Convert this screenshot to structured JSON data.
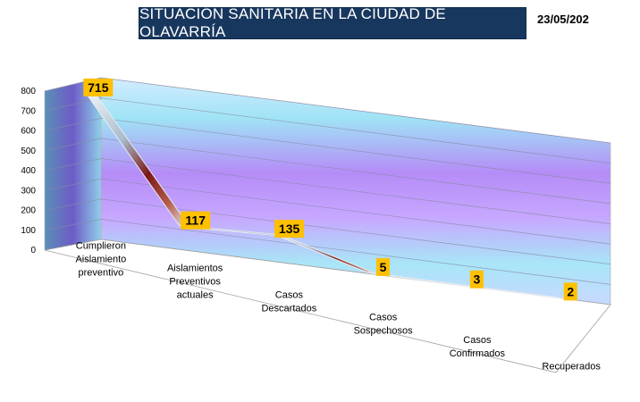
{
  "header": {
    "title": "SITUACIÓN SANITARIA EN LA CIUDAD DE OLAVARRÍA",
    "date": "23/05/202"
  },
  "colors": {
    "title_bg": "#17375e",
    "label_bg": "#ffc000",
    "ribbon_top": "#6f86a8",
    "ribbon_slope_dark": "#8b1a1a",
    "wall_purple": "#b58cf7",
    "wall_blue": "#9fe3f5"
  },
  "chart_data": {
    "type": "line",
    "style": "3d-ribbon",
    "title": "",
    "xlabel": "",
    "ylabel": "",
    "ylim": [
      0,
      800
    ],
    "yticks": [
      0,
      100,
      200,
      300,
      400,
      500,
      600,
      700,
      800
    ],
    "grid": true,
    "categories": [
      "Cumplieron Aislamiento preventivo",
      "Aislamientos Preventivos actuales",
      "Casos Descartados",
      "Casos Sospechosos",
      "Casos Confirmados",
      "Recuperados"
    ],
    "category_lines": [
      [
        "Cumplieron",
        "Aislamiento",
        "preventivo"
      ],
      [
        "Aislamientos",
        "Preventivos",
        "actuales"
      ],
      [
        "Casos",
        "Descartados"
      ],
      [
        "Casos",
        "Sospechosos"
      ],
      [
        "Casos",
        "Confirmados"
      ],
      [
        "Recuperados"
      ]
    ],
    "values": [
      715,
      117,
      135,
      5,
      3,
      2
    ],
    "data_labels": [
      "715",
      "117",
      "135",
      "5",
      "3",
      "2"
    ]
  }
}
